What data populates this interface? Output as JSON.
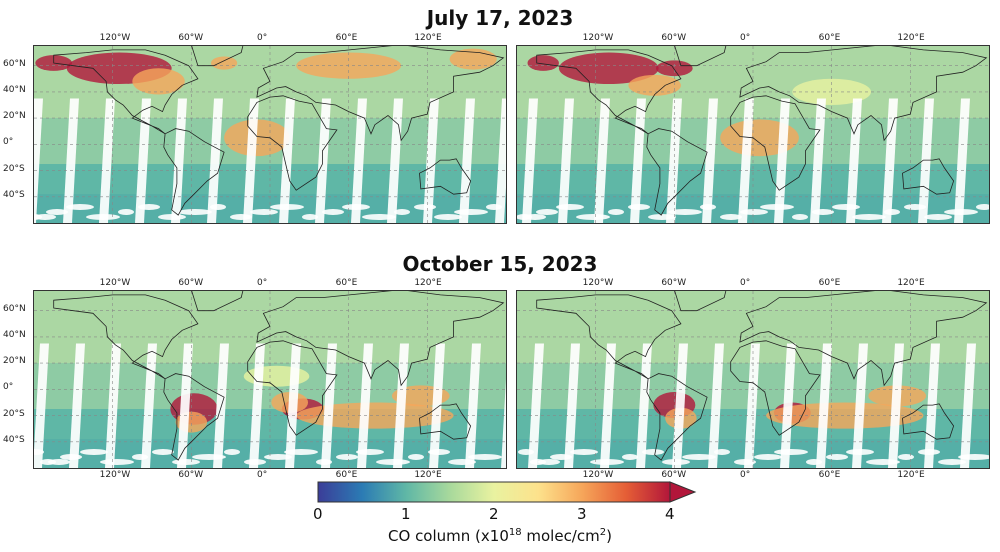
{
  "sections": [
    {
      "title": "July 17, 2023"
    },
    {
      "title": "October 15, 2023"
    }
  ],
  "map_axes": {
    "lon_labels": [
      "120°W",
      "60°W",
      "0°",
      "60°E",
      "120°E"
    ],
    "lat_labels": [
      "60°N",
      "40°N",
      "20°N",
      "0°",
      "20°S",
      "40°S"
    ]
  },
  "colorbar": {
    "ticks": [
      "0",
      "1",
      "2",
      "3",
      "4"
    ],
    "label_prefix": "CO column (x10",
    "label_exp": "18",
    "label_mid": " molec/cm",
    "label_sq": "2",
    "label_suffix": ")",
    "colors": [
      "#3b3d98",
      "#2b7bb4",
      "#5fb7a6",
      "#a8d99c",
      "#e9f2a0",
      "#fde28c",
      "#f6a65a",
      "#e55e36",
      "#b2163a"
    ],
    "range": [
      0,
      4
    ]
  },
  "colors": {
    "low": "#5fb7a6",
    "mid": "#e9f2a0",
    "high": "#f6a65a",
    "max": "#b2163a",
    "missing": "#ffffff"
  }
}
